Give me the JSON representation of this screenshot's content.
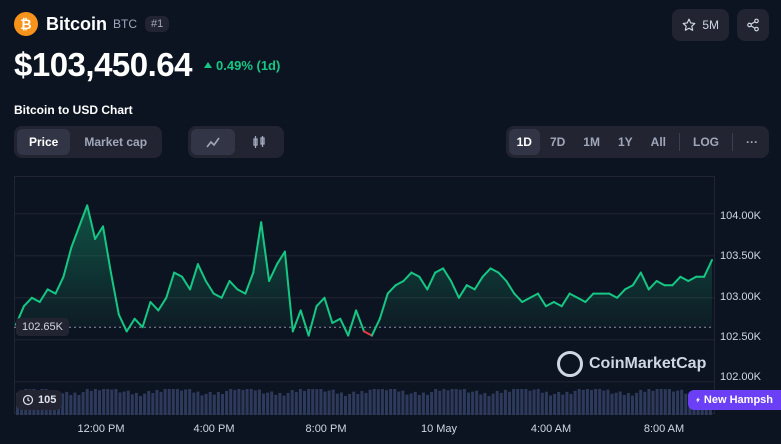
{
  "coin": {
    "name": "Bitcoin",
    "symbol": "BTC",
    "rank": "#1",
    "logo_glyph": "₿",
    "brand_color": "#f7931a"
  },
  "actions": {
    "watchlist_count": "5M",
    "star_icon": "star-icon",
    "share_icon": "share-icon"
  },
  "price": {
    "value": "$103,450.64",
    "change": "0.49% (1d)",
    "change_color": "#16c784"
  },
  "chart_title": "Bitcoin to USD Chart",
  "tabs": {
    "type": [
      {
        "label": "Price",
        "active": true
      },
      {
        "label": "Market cap",
        "active": false
      }
    ],
    "style": [
      {
        "icon": "line-chart-icon",
        "active": true
      },
      {
        "icon": "candlestick-icon",
        "active": false
      }
    ],
    "range": [
      {
        "label": "1D",
        "active": true
      },
      {
        "label": "7D",
        "active": false
      },
      {
        "label": "1M",
        "active": false
      },
      {
        "label": "1Y",
        "active": false
      },
      {
        "label": "All",
        "active": false
      }
    ],
    "log_label": "LOG",
    "more_label": "···"
  },
  "reference_price": "102.65K",
  "watermark": "CoinMarketCap",
  "history_chip": "105",
  "promo_chip": "New Hampsh",
  "chart_data": {
    "type": "line",
    "x_ticks": [
      "12:00 PM",
      "4:00 PM",
      "8:00 PM",
      "10 May",
      "4:00 AM",
      "8:00 AM"
    ],
    "y_ticks": [
      "104.00K",
      "103.50K",
      "103.00K",
      "102.50K",
      "102.00K"
    ],
    "ylim": [
      101.95,
      104.45
    ],
    "baseline": 102.65,
    "up_color": "#16c784",
    "down_color": "#ea3943",
    "series": [
      {
        "values": [
          102.68,
          102.9,
          103.0,
          102.95,
          103.1,
          103.05,
          103.25,
          103.6,
          103.85,
          104.1,
          103.7,
          103.85,
          103.3,
          102.8,
          102.6,
          102.75,
          102.65,
          102.95,
          102.85,
          103.0,
          103.3,
          103.25,
          103.1,
          103.4,
          103.2,
          103.05,
          103.0,
          103.2,
          103.1,
          103.05,
          103.3,
          103.9,
          103.2,
          103.4,
          103.55,
          102.6,
          102.85,
          102.55,
          102.9,
          103.0,
          102.7,
          102.75,
          102.55,
          102.85,
          102.6,
          102.55,
          102.75,
          103.05,
          103.15,
          103.2,
          103.3,
          103.25,
          103.1,
          103.3,
          103.35,
          103.2,
          103.0,
          103.15,
          103.1,
          103.25,
          103.35,
          103.3,
          103.2,
          103.05,
          102.95,
          103.0,
          103.05,
          102.9,
          102.95,
          102.9,
          103.05,
          103.0,
          102.95,
          103.05,
          103.05,
          103.05,
          103.0,
          103.1,
          103.15,
          103.3,
          103.1,
          103.2,
          103.15,
          103.15,
          103.25,
          103.2,
          103.25,
          103.25,
          103.45
        ]
      }
    ]
  },
  "volume_color": "#2e3a5c"
}
